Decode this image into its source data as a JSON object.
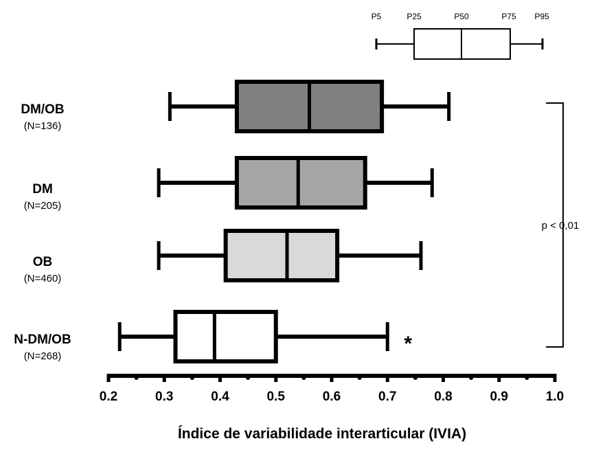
{
  "chart_data": {
    "type": "boxplot",
    "xlabel": "Índice de variabilidade interarticular (IVIA)",
    "xlim": [
      0.2,
      1.0
    ],
    "ticks": [
      "0.2",
      "0.3",
      "0.4",
      "0.5",
      "0.6",
      "0.7",
      "0.8",
      "0.9",
      "1.0"
    ],
    "minor_ticks": [
      0.25,
      0.35,
      0.45,
      0.55,
      0.65,
      0.75,
      0.85,
      0.95
    ],
    "groups": [
      {
        "name": "DM/OB",
        "n_label": "(N=136)",
        "fill": "#808080",
        "p5": 0.31,
        "p25": 0.43,
        "p50": 0.56,
        "p75": 0.69,
        "p95": 0.81
      },
      {
        "name": "DM",
        "n_label": "(N=205)",
        "fill": "#a6a6a6",
        "p5": 0.29,
        "p25": 0.43,
        "p50": 0.54,
        "p75": 0.66,
        "p95": 0.78
      },
      {
        "name": "OB",
        "n_label": "(N=460)",
        "fill": "#d9d9d9",
        "p5": 0.29,
        "p25": 0.41,
        "p50": 0.52,
        "p75": 0.61,
        "p95": 0.76
      },
      {
        "name": "N-DM/OB",
        "n_label": "(N=268)",
        "fill": "#ffffff",
        "p5": 0.22,
        "p25": 0.32,
        "p50": 0.39,
        "p75": 0.5,
        "p95": 0.7,
        "marker": "*"
      }
    ],
    "legend": {
      "labels": [
        "P5",
        "P25",
        "P50",
        "P75",
        "P95"
      ]
    },
    "annotation": {
      "text": "p < 0,01"
    }
  }
}
